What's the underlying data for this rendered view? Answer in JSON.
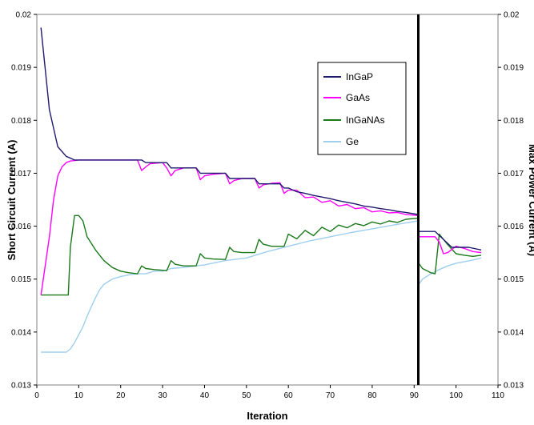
{
  "chart_data": {
    "type": "line",
    "xlabel": "Iteration",
    "ylabel": "Short Circuit Current (A)",
    "y2label": "Max Power Current (A)",
    "xlim": [
      0,
      110
    ],
    "ylim": [
      0.013,
      0.02
    ],
    "y2lim": [
      0.013,
      0.02
    ],
    "x_ticks": [
      "0",
      "10",
      "20",
      "30",
      "40",
      "50",
      "60",
      "70",
      "80",
      "90",
      "100",
      "110"
    ],
    "y_ticks": [
      "0.013",
      "0.014",
      "0.015",
      "0.016",
      "0.017",
      "0.018",
      "0.019",
      "0.02"
    ],
    "y2_ticks": [
      "0.013",
      "0.014",
      "0.015",
      "0.016",
      "0.017",
      "0.018",
      "0.019",
      "0.02"
    ],
    "grid": false,
    "legend_position": "upper-right",
    "vertical_marker_x": 91,
    "series": [
      {
        "name": "InGaP",
        "color": "#1f1a6e",
        "x": [
          1,
          3,
          5,
          7,
          9,
          12,
          15,
          20,
          24,
          25,
          26,
          31,
          32,
          35,
          38,
          39,
          42,
          45,
          46,
          49,
          52,
          53,
          56,
          58,
          59,
          60,
          62,
          64,
          66,
          68,
          70,
          72,
          74,
          76,
          78,
          80,
          82,
          84,
          86,
          88,
          90.9,
          91.1,
          93,
          95,
          97,
          99,
          101,
          103,
          106
        ],
        "values": [
          0.01975,
          0.0182,
          0.0175,
          0.01732,
          0.01725,
          0.01725,
          0.01725,
          0.01725,
          0.01725,
          0.01725,
          0.0172,
          0.0172,
          0.0171,
          0.0171,
          0.0171,
          0.017,
          0.017,
          0.017,
          0.0169,
          0.0169,
          0.0169,
          0.0168,
          0.0168,
          0.0168,
          0.01672,
          0.01672,
          0.01665,
          0.01662,
          0.01658,
          0.01655,
          0.01652,
          0.01648,
          0.01645,
          0.01642,
          0.01638,
          0.01636,
          0.01633,
          0.01631,
          0.01628,
          0.01626,
          0.01622,
          0.0159,
          0.0159,
          0.0159,
          0.01575,
          0.0156,
          0.0156,
          0.0156,
          0.01555
        ]
      },
      {
        "name": "GaAs",
        "color": "#ff00ff",
        "x": [
          1,
          3,
          4,
          5,
          6,
          7,
          8,
          10,
          15,
          20,
          24,
          25,
          26,
          27,
          30,
          31,
          32,
          33,
          35,
          38,
          39,
          40,
          42,
          45,
          46,
          47,
          49,
          52,
          53,
          54,
          56,
          58,
          59,
          60,
          62,
          64,
          66,
          68,
          70,
          72,
          74,
          76,
          78,
          80,
          82,
          84,
          86,
          88,
          90.9,
          91.1,
          93,
          95,
          96,
          97,
          98,
          100,
          102,
          104,
          106
        ],
        "values": [
          0.0147,
          0.0158,
          0.0165,
          0.01695,
          0.01712,
          0.0172,
          0.01723,
          0.01725,
          0.01725,
          0.01725,
          0.01725,
          0.01705,
          0.01712,
          0.01718,
          0.0172,
          0.0171,
          0.01695,
          0.01705,
          0.0171,
          0.0171,
          0.01688,
          0.01695,
          0.01698,
          0.017,
          0.0168,
          0.01686,
          0.0169,
          0.0169,
          0.01672,
          0.01678,
          0.01681,
          0.01682,
          0.01662,
          0.01668,
          0.01668,
          0.01654,
          0.01655,
          0.01645,
          0.01648,
          0.01638,
          0.01641,
          0.01633,
          0.01635,
          0.01627,
          0.01629,
          0.01625,
          0.01626,
          0.01622,
          0.0162,
          0.0158,
          0.0158,
          0.0158,
          0.0157,
          0.01548,
          0.0155,
          0.01562,
          0.01558,
          0.01552,
          0.0155
        ]
      },
      {
        "name": "InGaNAs",
        "color": "#1a7a1a",
        "x": [
          1,
          3,
          5,
          7,
          7.5,
          8,
          9,
          10,
          11,
          12,
          14,
          16,
          18,
          20,
          22,
          24,
          25,
          26,
          28,
          31,
          32,
          33,
          35,
          38,
          39,
          40,
          42,
          45,
          46,
          47,
          49,
          52,
          53,
          54,
          56,
          59,
          60,
          62,
          64,
          66,
          68,
          70,
          72,
          74,
          76,
          78,
          80,
          82,
          84,
          86,
          88,
          90.9,
          91.1,
          92,
          94,
          95,
          96,
          98,
          100,
          102,
          104,
          106
        ],
        "values": [
          0.0147,
          0.0147,
          0.0147,
          0.0147,
          0.0147,
          0.0156,
          0.0162,
          0.0162,
          0.0161,
          0.0158,
          0.01555,
          0.01535,
          0.01522,
          0.01515,
          0.01512,
          0.0151,
          0.01525,
          0.0152,
          0.01518,
          0.01516,
          0.01535,
          0.01528,
          0.01525,
          0.01525,
          0.01548,
          0.0154,
          0.01538,
          0.01537,
          0.0156,
          0.01552,
          0.0155,
          0.0155,
          0.01575,
          0.01566,
          0.01562,
          0.01562,
          0.01585,
          0.01576,
          0.01592,
          0.01582,
          0.01598,
          0.0159,
          0.01602,
          0.01597,
          0.01605,
          0.01601,
          0.01608,
          0.01604,
          0.0161,
          0.01607,
          0.01613,
          0.01615,
          0.0153,
          0.0152,
          0.01512,
          0.0151,
          0.01585,
          0.01565,
          0.01548,
          0.01545,
          0.01543,
          0.01545
        ]
      },
      {
        "name": "Ge",
        "color": "#9ecfee",
        "x": [
          1,
          3,
          5,
          7,
          8,
          9,
          10,
          11,
          12,
          13,
          14,
          15,
          16,
          17,
          18,
          20,
          22,
          24,
          26,
          28,
          30,
          32,
          35,
          40,
          45,
          50,
          55,
          60,
          65,
          70,
          75,
          80,
          85,
          90.9,
          91.1,
          92,
          94,
          96,
          98,
          100,
          102,
          104,
          106
        ],
        "values": [
          0.01362,
          0.01362,
          0.01362,
          0.01362,
          0.01368,
          0.0138,
          0.01395,
          0.0141,
          0.0143,
          0.01448,
          0.01465,
          0.0148,
          0.0149,
          0.01495,
          0.015,
          0.01505,
          0.01508,
          0.0151,
          0.0151,
          0.01515,
          0.01515,
          0.0152,
          0.01522,
          0.01527,
          0.01535,
          0.0154,
          0.01552,
          0.01562,
          0.01572,
          0.0158,
          0.01588,
          0.01595,
          0.01602,
          0.0161,
          0.0149,
          0.015,
          0.0151,
          0.01518,
          0.01525,
          0.0153,
          0.01533,
          0.01536,
          0.0154
        ]
      }
    ]
  }
}
